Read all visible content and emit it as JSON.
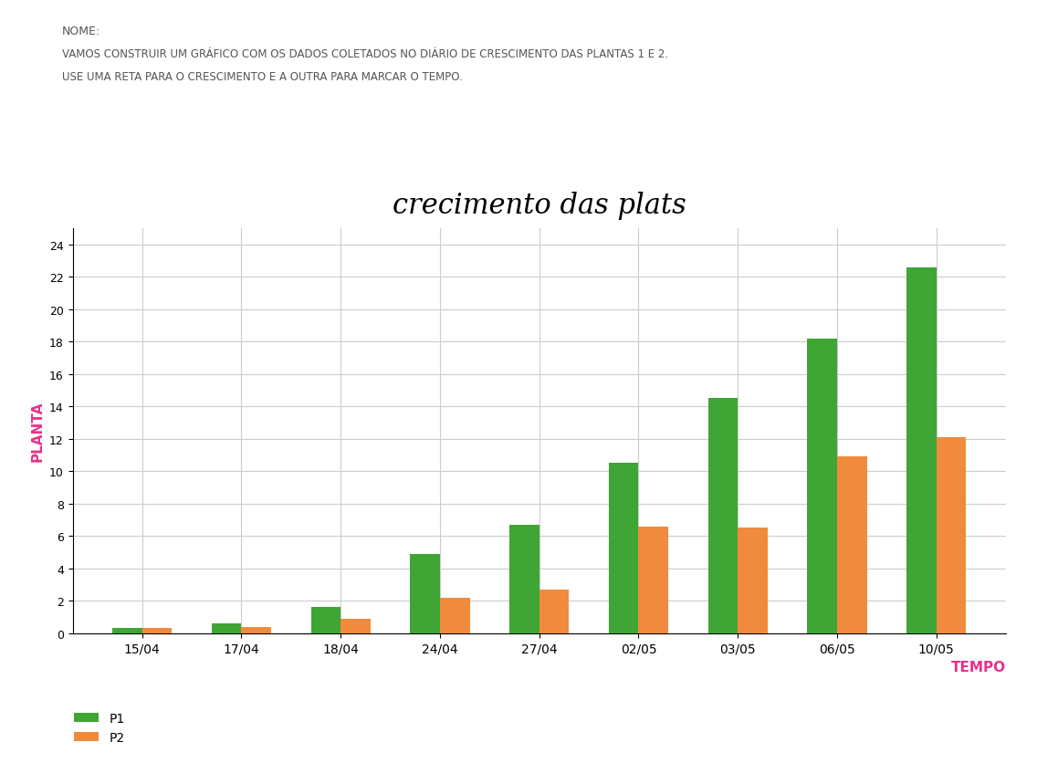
{
  "header": {
    "name_label": "NOME:",
    "instructions": [
      "VAMOS CONSTRUIR UM GRÁFICO COM OS DADOS COLETADOS NO DIÁRIO DE CRESCIMENTO DAS PLANTAS 1 E 2.",
      "USE UMA RETA PARA O CRESCIMENTO E A OUTRA PARA MARCAR O TEMPO."
    ]
  },
  "chart_data": {
    "type": "bar",
    "title": "crecimento das plats",
    "x_label": "TEMPO",
    "y_label": "PLANTA",
    "categories": [
      "15/04",
      "17/04",
      "18/04",
      "24/04",
      "27/04",
      "02/05",
      "03/05",
      "06/05",
      "10/05"
    ],
    "series": [
      {
        "name": "P1",
        "color": "#3fa535",
        "values": [
          0.3,
          0.6,
          1.6,
          4.9,
          6.7,
          10.5,
          14.5,
          18.2,
          22.6
        ]
      },
      {
        "name": "P2",
        "color": "#f08a3c",
        "values": [
          0.3,
          0.4,
          0.9,
          2.2,
          2.7,
          6.6,
          6.5,
          10.9,
          12.1
        ]
      }
    ],
    "ylim": [
      0,
      25
    ],
    "yticks": [
      0,
      2,
      4,
      6,
      8,
      10,
      12,
      14,
      16,
      18,
      20,
      22,
      24
    ],
    "grid": true,
    "legend": "lower left"
  }
}
